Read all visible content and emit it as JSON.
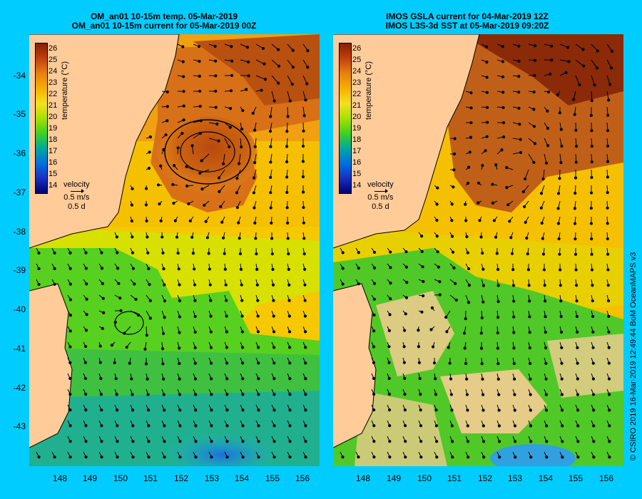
{
  "left_panel": {
    "title_line1": "OM_an01 10-15m temp. 05-Mar-2019",
    "title_line2": "OM_an01 10-15m current for 05-Mar-2019 00Z"
  },
  "right_panel": {
    "title_line1": "IMOS GSLA current for 04-Mar-2019 12Z",
    "title_line2": "IMOS L3S-3d SST at 05-Mar-2019 09:20Z"
  },
  "colorbar": {
    "ticks": [
      "26",
      "25",
      "24",
      "23",
      "22",
      "21",
      "20",
      "19",
      "18",
      "17",
      "16",
      "15",
      "14"
    ],
    "unit": "temperature (°C)"
  },
  "velocity_legend": {
    "label": "velocity",
    "speed": "0.5 m/s",
    "time": "0.5 d"
  },
  "lat_labels": [
    "-34",
    "-35",
    "-36",
    "-37",
    "-38",
    "-39",
    "-40",
    "-41",
    "-42",
    "-43"
  ],
  "lon_labels": [
    "148",
    "149",
    "150",
    "151",
    "152",
    "153",
    "154",
    "155",
    "156"
  ],
  "credit": "© CSIRO 2019   16-Mar-2019 12:49:44 BoM OceanMAPS v3",
  "colors": {
    "background": "#00ccff",
    "land": "#ffcc99"
  }
}
